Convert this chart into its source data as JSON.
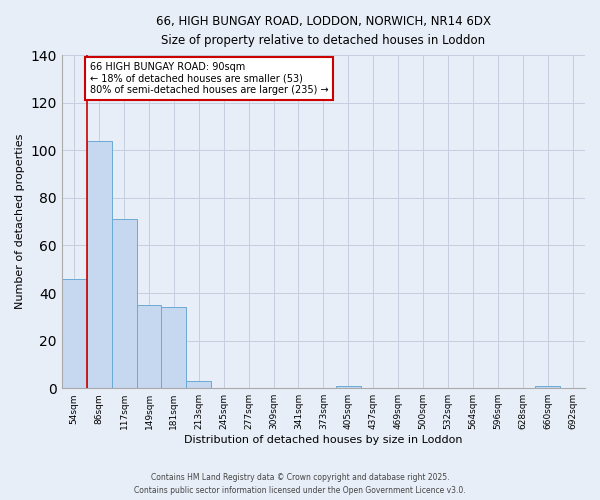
{
  "title1": "66, HIGH BUNGAY ROAD, LODDON, NORWICH, NR14 6DX",
  "title2": "Size of property relative to detached houses in Loddon",
  "xlabel": "Distribution of detached houses by size in Loddon",
  "ylabel": "Number of detached properties",
  "categories": [
    "54sqm",
    "86sqm",
    "117sqm",
    "149sqm",
    "181sqm",
    "213sqm",
    "245sqm",
    "277sqm",
    "309sqm",
    "341sqm",
    "373sqm",
    "405sqm",
    "437sqm",
    "469sqm",
    "500sqm",
    "532sqm",
    "564sqm",
    "596sqm",
    "628sqm",
    "660sqm",
    "692sqm"
  ],
  "values": [
    46,
    104,
    71,
    35,
    34,
    3,
    0,
    0,
    0,
    0,
    0,
    1,
    0,
    0,
    0,
    0,
    0,
    0,
    0,
    1,
    0
  ],
  "bar_color": "#c5d8f0",
  "bar_edge_color": "#6aaad4",
  "bar_edge_width": 0.7,
  "vline_x": 0.5,
  "vline_color": "#cc0000",
  "annotation_title": "66 HIGH BUNGAY ROAD: 90sqm",
  "annotation_line1": "← 18% of detached houses are smaller (53)",
  "annotation_line2": "80% of semi-detached houses are larger (235) →",
  "annotation_box_color": "#ffffff",
  "annotation_box_edge": "#cc0000",
  "ylim": [
    0,
    140
  ],
  "yticks": [
    0,
    20,
    40,
    60,
    80,
    100,
    120,
    140
  ],
  "footer1": "Contains HM Land Registry data © Crown copyright and database right 2025.",
  "footer2": "Contains public sector information licensed under the Open Government Licence v3.0.",
  "bg_color": "#e8eef8"
}
